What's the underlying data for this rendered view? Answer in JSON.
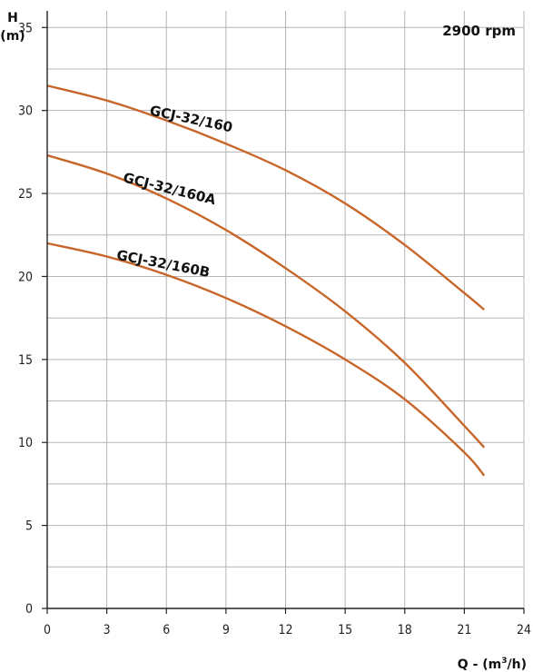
{
  "chart_data": {
    "type": "line",
    "speed_label": "2900 rpm",
    "y_axis": {
      "label_line1": "H",
      "label_line2": "(m)",
      "ylim": [
        0,
        36
      ],
      "ticks": [
        0,
        5,
        10,
        15,
        20,
        25,
        30,
        35
      ],
      "grid_step": 2.5
    },
    "x_axis": {
      "label_prefix": "Q - (m",
      "label_sup": "3",
      "label_suffix": "/h)",
      "xlim": [
        0,
        24
      ],
      "ticks": [
        0,
        3,
        6,
        9,
        12,
        15,
        18,
        21,
        24
      ],
      "grid_step": 3
    },
    "grid": true,
    "curve_color": "#c8662a",
    "series": [
      {
        "name": "GCJ-32/160",
        "x": [
          0,
          3,
          6,
          9,
          12,
          15,
          18,
          21,
          22
        ],
        "y": [
          31.5,
          30.6,
          29.4,
          28.0,
          26.4,
          24.4,
          21.9,
          19.0,
          18.0
        ]
      },
      {
        "name": "GCJ-32/160A",
        "x": [
          0,
          3,
          6,
          9,
          12,
          15,
          18,
          21,
          22
        ],
        "y": [
          27.3,
          26.2,
          24.7,
          22.8,
          20.5,
          17.9,
          14.8,
          11.0,
          9.7
        ]
      },
      {
        "name": "GCJ-32/160B",
        "x": [
          0,
          3,
          6,
          9,
          12,
          15,
          18,
          21,
          22
        ],
        "y": [
          22.0,
          21.2,
          20.1,
          18.7,
          17.0,
          15.0,
          12.6,
          9.4,
          8.0
        ]
      }
    ]
  }
}
